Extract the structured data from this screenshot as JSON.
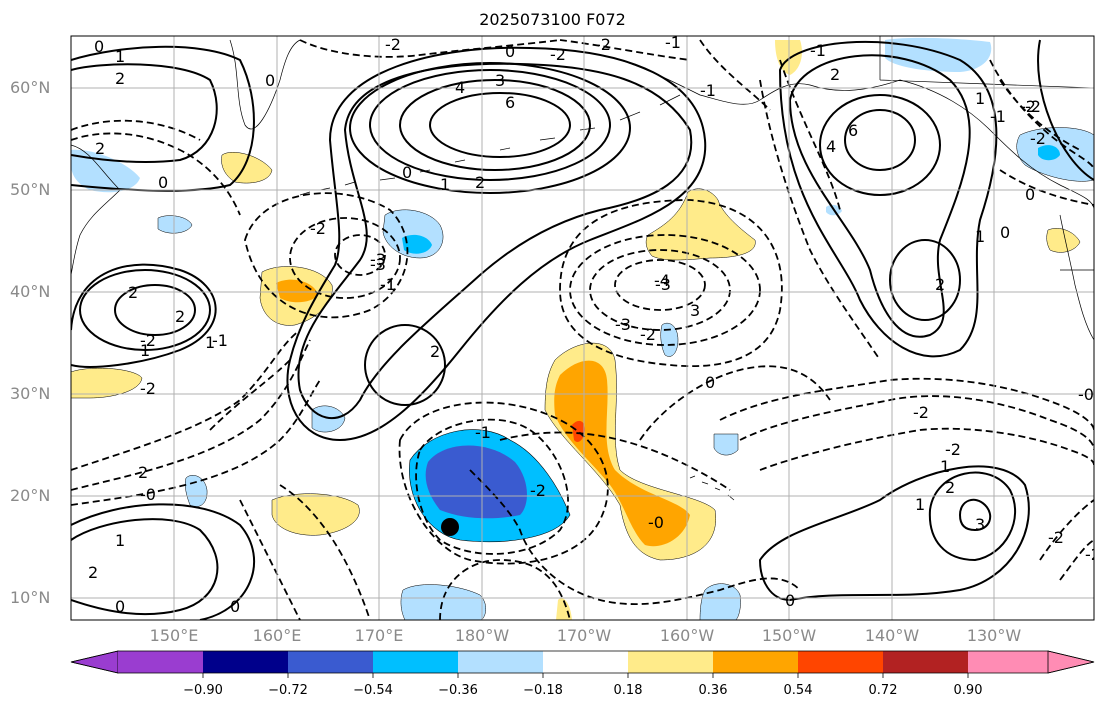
{
  "title": "2025073100 F072",
  "lat_labels": [
    "60°N",
    "50°N",
    "40°N",
    "30°N",
    "20°N",
    "10°N"
  ],
  "lon_labels": [
    "150°E",
    "160°E",
    "170°E",
    "180°W",
    "170°W",
    "160°W",
    "150°W",
    "140°W",
    "130°W"
  ],
  "colorbar": {
    "ticks": [
      "−0.90",
      "−0.72",
      "−0.54",
      "−0.36",
      "−0.18",
      "0.18",
      "0.36",
      "0.54",
      "0.72",
      "0.90"
    ],
    "colors": [
      "#9a3dd0",
      "#00008b",
      "#3a5bd0",
      "#00bfff",
      "#b3e0ff",
      "#ffffff",
      "#ffeb8a",
      "#ffa500",
      "#ff4500",
      "#b22222",
      "#ff8cb4"
    ]
  },
  "contour_labels": [
    "0",
    "1",
    "2",
    "3",
    "4",
    "6",
    "-2",
    "-3",
    "-4",
    "1",
    "2",
    "2",
    "2",
    "-2",
    "-1",
    "0",
    "2",
    "-1",
    "1",
    "2",
    "3",
    "-1",
    "-2",
    "1",
    "0",
    "-0",
    "0",
    "-2",
    "-3",
    "-2",
    "-2",
    "-0",
    "6",
    "4",
    "1",
    "0",
    "2",
    "1",
    "-2",
    "-1",
    "0",
    "-2",
    "0",
    "2",
    "3",
    "1",
    "-2",
    "-2",
    "0",
    "2",
    "1",
    "-2",
    "2",
    "1",
    "-0",
    "0",
    "0",
    "-2",
    "-1",
    "-1",
    "-2",
    "-2",
    "-3",
    "-1",
    "-3",
    "2",
    "-2",
    "0"
  ],
  "marker": {
    "name": "position-dot"
  }
}
